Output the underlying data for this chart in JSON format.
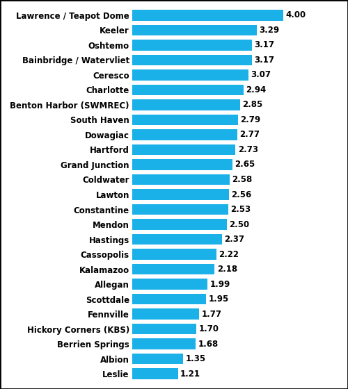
{
  "categories": [
    "Leslie",
    "Albion",
    "Berrien Springs",
    "Hickory Corners (KBS)",
    "Fennville",
    "Scottdale",
    "Allegan",
    "Kalamazoo",
    "Cassopolis",
    "Hastings",
    "Mendon",
    "Constantine",
    "Lawton",
    "Coldwater",
    "Grand Junction",
    "Hartford",
    "Dowagiac",
    "South Haven",
    "Benton Harbor (SWMREC)",
    "Charlotte",
    "Ceresco",
    "Bainbridge / Watervliet",
    "Oshtemo",
    "Keeler",
    "Lawrence / Teapot Dome"
  ],
  "values": [
    1.21,
    1.35,
    1.68,
    1.7,
    1.77,
    1.95,
    1.99,
    2.18,
    2.22,
    2.37,
    2.5,
    2.53,
    2.56,
    2.58,
    2.65,
    2.73,
    2.77,
    2.79,
    2.85,
    2.94,
    3.07,
    3.17,
    3.17,
    3.29,
    4.0
  ],
  "bar_color": "#1AB0E8",
  "value_color": "#000000",
  "label_color": "#000000",
  "background_color": "#ffffff",
  "xlim": [
    0,
    4.6
  ],
  "bar_height": 0.72,
  "value_fontsize": 8.5,
  "label_fontsize": 8.5,
  "border_color": "#000000",
  "border_linewidth": 2.0
}
